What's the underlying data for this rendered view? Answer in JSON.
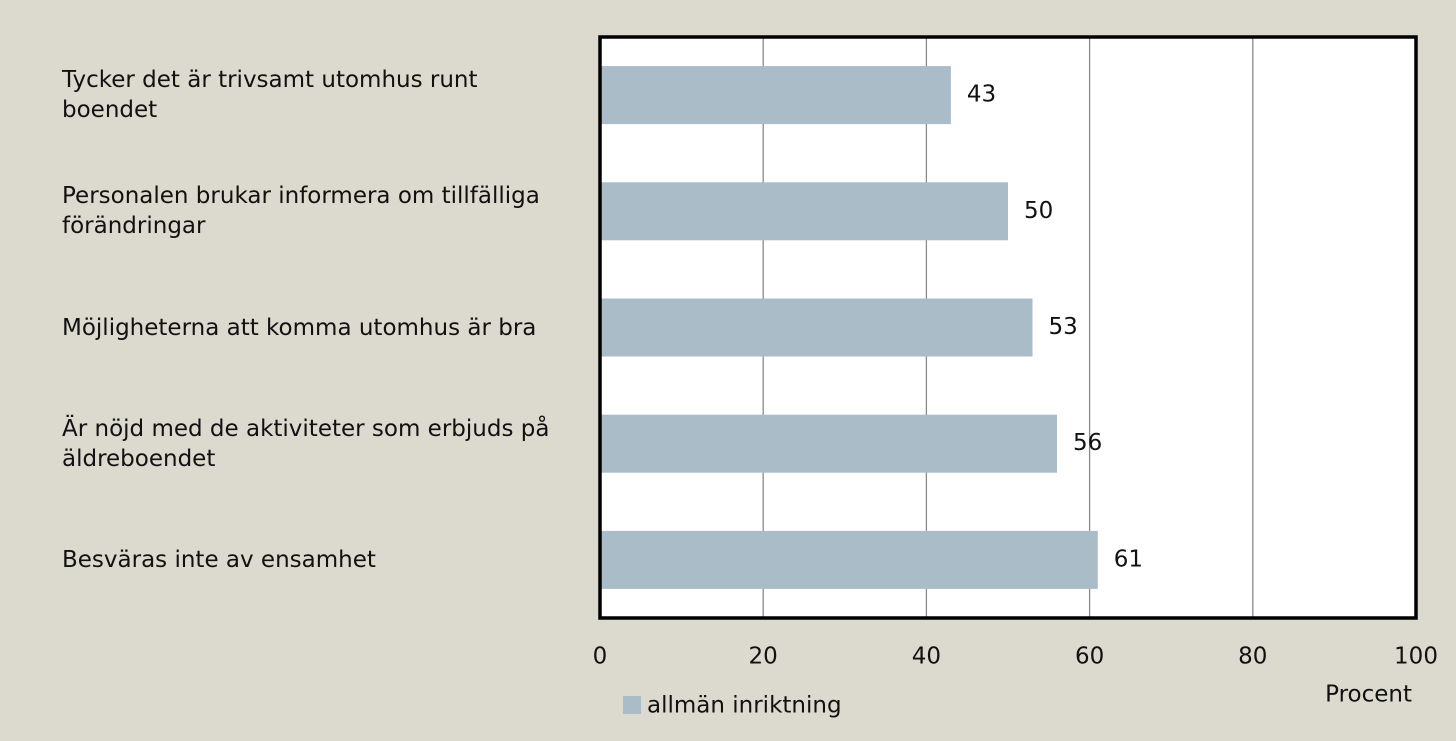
{
  "chart_data": {
    "type": "bar",
    "orientation": "horizontal",
    "categories": [
      "Tycker det är trivsamt utomhus runt boendet",
      "Personalen brukar informera om tillfälliga förändringar",
      "Möjligheterna att komma utomhus är bra",
      "Är nöjd med de aktiviteter som erbjuds på äldreboendet",
      "Besväras inte av ensamhet"
    ],
    "series": [
      {
        "name": "allmän inriktning",
        "color": "#a9bcc7",
        "values": [
          43,
          50,
          53,
          56,
          61
        ]
      }
    ],
    "xlim": [
      0,
      100
    ],
    "xticks": [
      0,
      20,
      40,
      60,
      80,
      100
    ],
    "grid": true,
    "x_label": "Procent",
    "legend": "bottom-left"
  }
}
